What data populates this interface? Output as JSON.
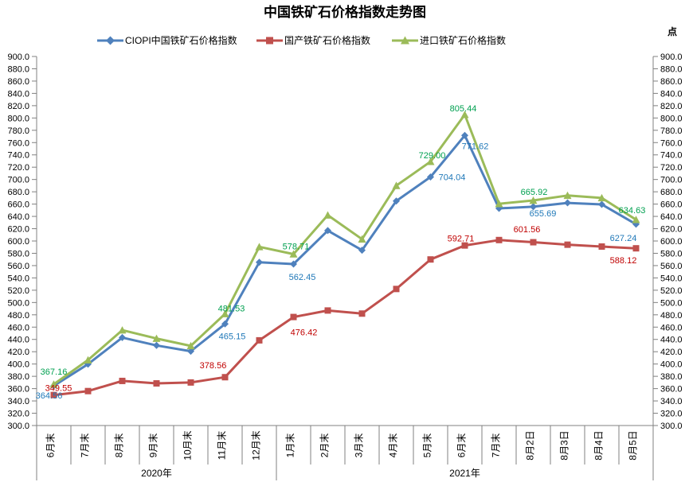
{
  "title": "中国铁矿石价格指数走势图",
  "unit_label": "点",
  "chart_data": {
    "type": "line",
    "title": "中国铁矿石价格指数走势图",
    "unit_label": "点",
    "ylabel": "",
    "xlabel": "",
    "ylim": [
      300.0,
      900.0
    ],
    "ytick_step": 20.0,
    "ytick_format_decimals": 1,
    "grid": false,
    "legend_position": "top",
    "axis_color": "#808080",
    "categories": [
      "6月末",
      "7月末",
      "8月末",
      "9月末",
      "10月末",
      "11月末",
      "12月末",
      "1月末",
      "2月末",
      "3月末",
      "4月末",
      "5月末",
      "6月末",
      "7月末",
      "8月2日",
      "8月3日",
      "8月4日",
      "8月5日"
    ],
    "year_groups": [
      {
        "label": "2020年",
        "span": 7
      },
      {
        "label": "2021年",
        "span": 11
      }
    ],
    "series": [
      {
        "name": "CIOPI中国铁矿石价格指数",
        "color": "#4F81BD",
        "label_color": "#1F78B8",
        "marker": "diamond",
        "values": [
          364.56,
          399.8,
          443.0,
          430.2,
          420.8,
          465.15,
          565.4,
          562.45,
          617.0,
          585.0,
          665.0,
          704.04,
          771.62,
          653.0,
          655.69,
          662.0,
          659.5,
          627.24
        ],
        "labeled_points": [
          {
            "i": 0,
            "dx": -6,
            "dy": 12
          },
          {
            "i": 5,
            "dx": 9,
            "dy": 15
          },
          {
            "i": 7,
            "dx": 11,
            "dy": 16
          },
          {
            "i": 11,
            "dx": 27,
            "dy": 0
          },
          {
            "i": 12,
            "dx": 13,
            "dy": 13
          },
          {
            "i": 14,
            "dx": 12,
            "dy": 8
          },
          {
            "i": 17,
            "dx": -16,
            "dy": 17
          }
        ]
      },
      {
        "name": "国产铁矿石价格指数",
        "color": "#C0504D",
        "label_color": "#C00000",
        "marker": "square",
        "values": [
          349.55,
          356.0,
          372.5,
          368.5,
          370.0,
          378.56,
          438.5,
          476.42,
          487.0,
          482.0,
          522.0,
          570.0,
          592.71,
          601.56,
          598.0,
          594.0,
          591.0,
          588.12
        ],
        "labeled_points": [
          {
            "i": 0,
            "dx": 6,
            "dy": -9
          },
          {
            "i": 5,
            "dx": -15,
            "dy": -15
          },
          {
            "i": 7,
            "dx": 13,
            "dy": 19
          },
          {
            "i": 12,
            "dx": -5,
            "dy": -9
          },
          {
            "i": 13,
            "dx": 35,
            "dy": -14
          },
          {
            "i": 17,
            "dx": -16,
            "dy": 15
          }
        ]
      },
      {
        "name": "进口铁矿石价格指数",
        "color": "#9BBB59",
        "label_color": "#00A050",
        "marker": "triangle",
        "values": [
          367.16,
          406.5,
          455.0,
          441.5,
          429.5,
          481.53,
          590.5,
          578.71,
          642.0,
          603.0,
          690.0,
          729.0,
          805.44,
          660.5,
          665.92,
          674.0,
          670.0,
          634.63
        ],
        "labeled_points": [
          {
            "i": 0,
            "dx": 0,
            "dy": -16
          },
          {
            "i": 5,
            "dx": 8,
            "dy": -7
          },
          {
            "i": 7,
            "dx": 3,
            "dy": -10
          },
          {
            "i": 11,
            "dx": 2,
            "dy": -8
          },
          {
            "i": 12,
            "dx": -2,
            "dy": -8
          },
          {
            "i": 14,
            "dx": 1,
            "dy": -11
          },
          {
            "i": 17,
            "dx": -5,
            "dy": -12
          }
        ]
      }
    ]
  }
}
